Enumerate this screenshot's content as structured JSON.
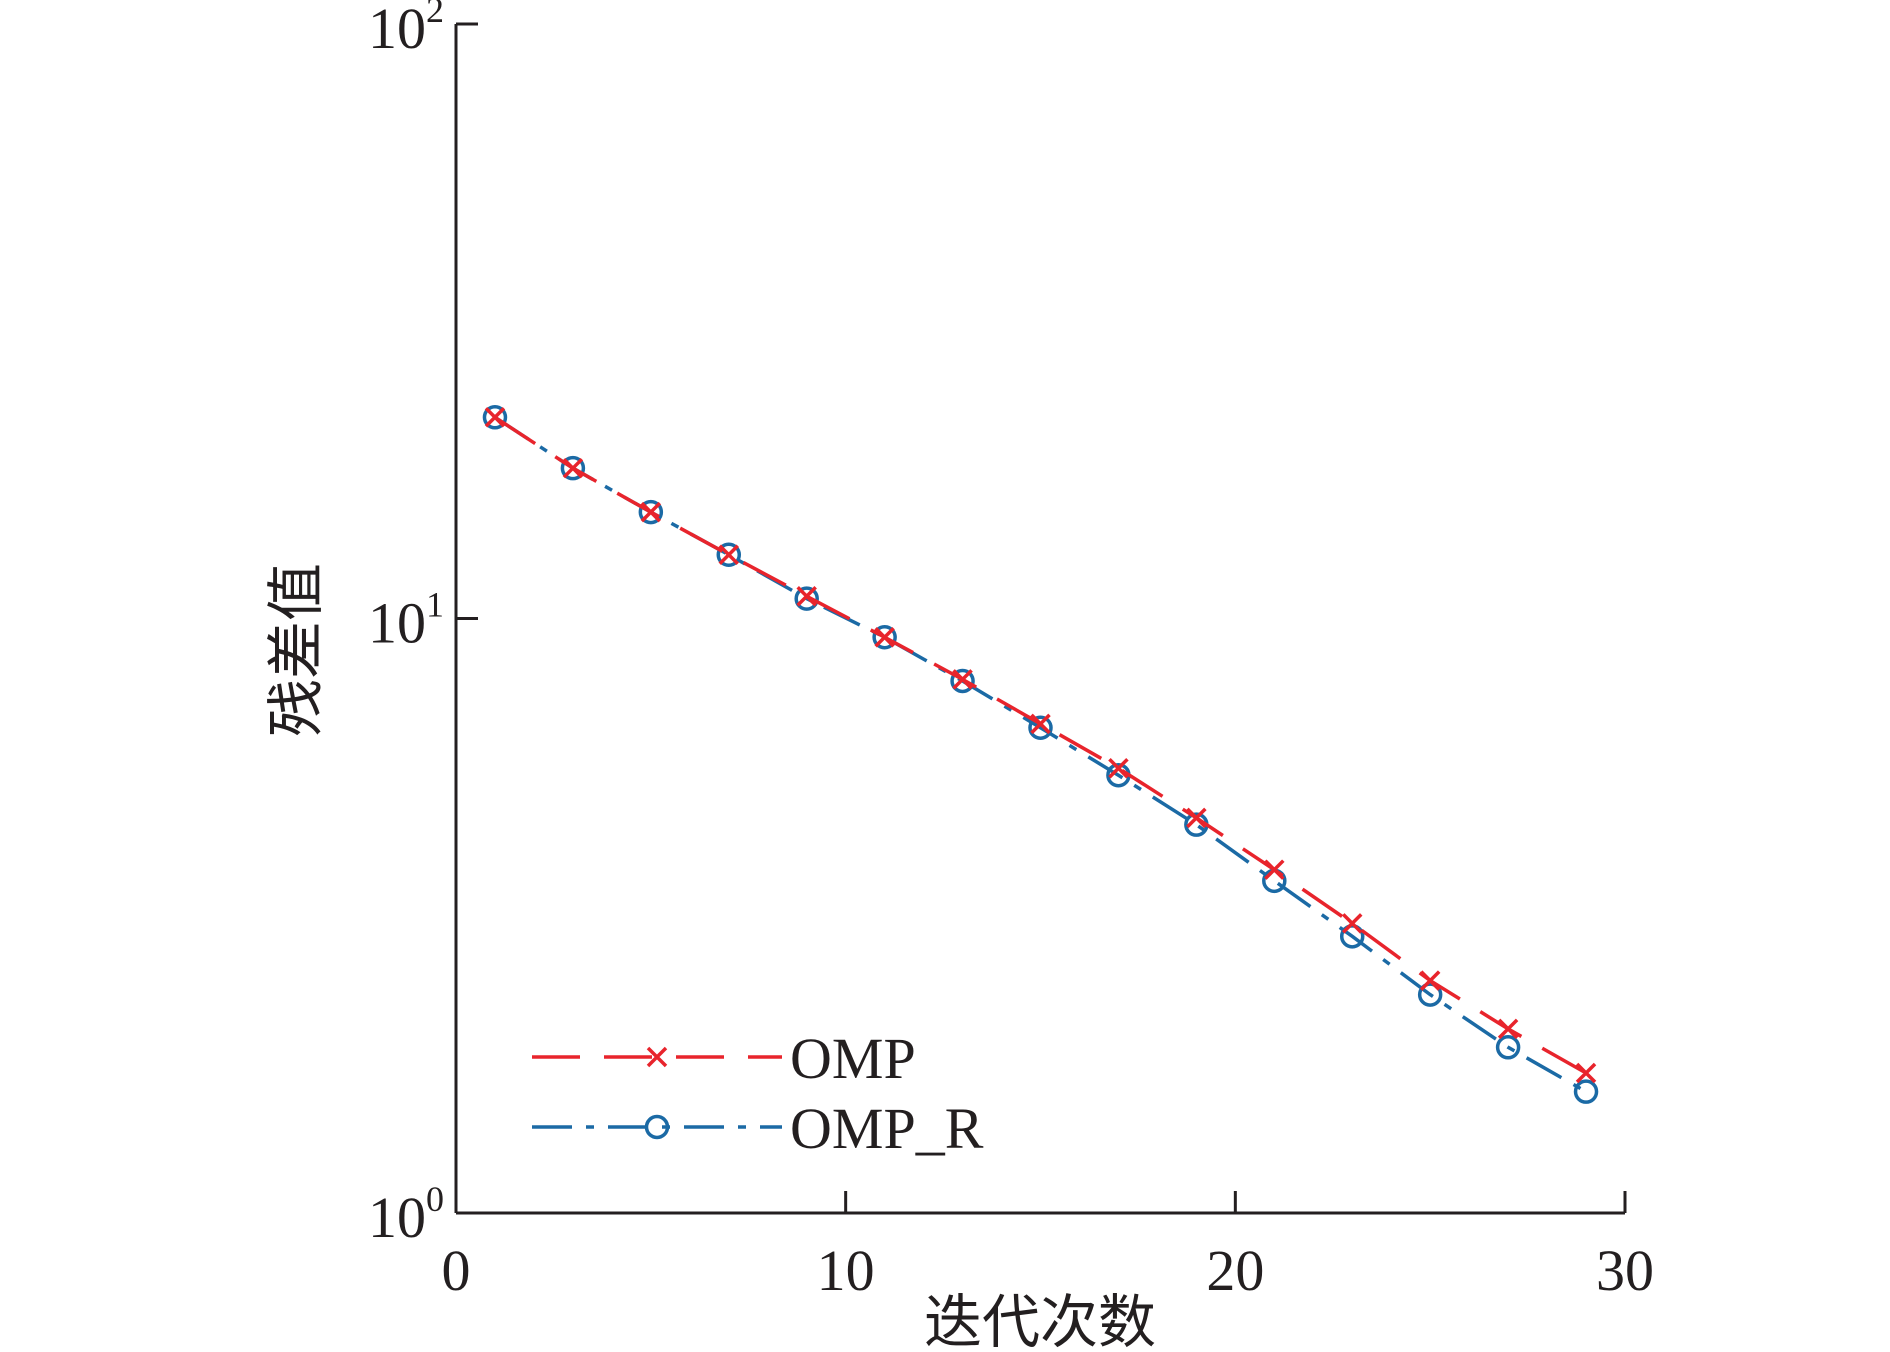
{
  "chart_data": {
    "type": "line",
    "xlabel": "迭代次数",
    "ylabel": "残差值",
    "xlim": [
      0,
      30
    ],
    "ylim": [
      1,
      100
    ],
    "yscale": "log",
    "grid": false,
    "legend_position": "bottom-left",
    "x_ticks": [
      {
        "value": 0,
        "label": "0"
      },
      {
        "value": 10,
        "label": "10"
      },
      {
        "value": 20,
        "label": "20"
      },
      {
        "value": 30,
        "label": "30"
      }
    ],
    "y_ticks": [
      {
        "value": 1,
        "base": "10",
        "exp": "0"
      },
      {
        "value": 10,
        "base": "10",
        "exp": "1"
      },
      {
        "value": 100,
        "base": "10",
        "exp": "2"
      }
    ],
    "x": [
      1,
      3,
      5,
      7,
      9,
      11,
      13,
      15,
      17,
      19,
      21,
      23,
      25,
      27,
      29
    ],
    "series": [
      {
        "name": "OMP",
        "color": "#e8242c",
        "marker": "x",
        "line_style": "dashed",
        "values": [
          21.8,
          17.9,
          15.1,
          12.8,
          10.9,
          9.3,
          7.9,
          6.65,
          5.6,
          4.62,
          3.78,
          3.07,
          2.46,
          2.04,
          1.72
        ]
      },
      {
        "name": "OMP_R",
        "color": "#1b6aa5",
        "marker": "circle",
        "line_style": "dash-dot",
        "values": [
          21.8,
          17.9,
          15.1,
          12.8,
          10.8,
          9.3,
          7.85,
          6.55,
          5.45,
          4.5,
          3.62,
          2.92,
          2.33,
          1.9,
          1.6
        ]
      }
    ]
  }
}
